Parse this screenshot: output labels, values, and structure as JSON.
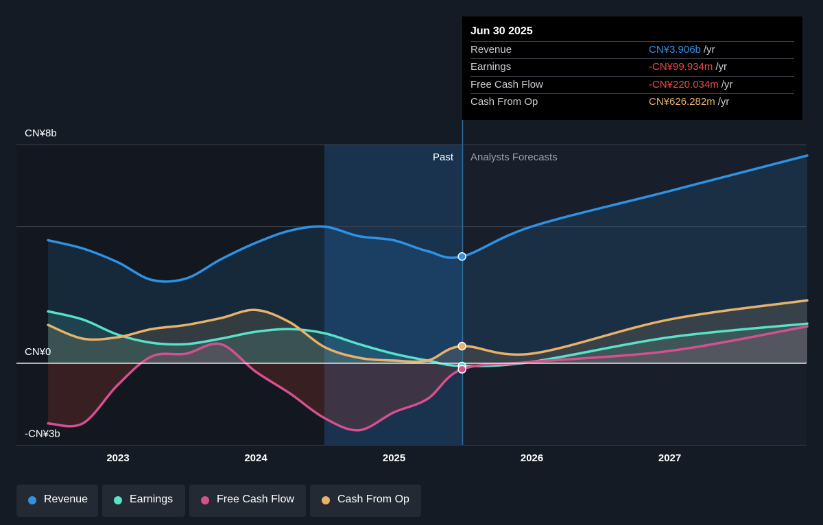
{
  "chart_data": {
    "type": "area",
    "y_axis_labels": [
      "CN¥8b",
      "CN¥0",
      "-CN¥3b"
    ],
    "ylim": [
      -3,
      8
    ],
    "x_tick_labels": [
      "2023",
      "2024",
      "2025",
      "2026",
      "2027"
    ],
    "regions": {
      "past": "Past",
      "forecast": "Analysts Forecasts"
    },
    "series": [
      {
        "name": "Revenue",
        "color": "#2e93e6",
        "points": [
          [
            "2022-06-30",
            4.5
          ],
          [
            "2022-09-30",
            4.2
          ],
          [
            "2022-12-31",
            3.7
          ],
          [
            "2023-03-31",
            3.05
          ],
          [
            "2023-06-30",
            3.1
          ],
          [
            "2023-09-30",
            3.8
          ],
          [
            "2023-12-31",
            4.4
          ],
          [
            "2024-03-31",
            4.85
          ],
          [
            "2024-06-30",
            5.0
          ],
          [
            "2024-09-30",
            4.65
          ],
          [
            "2024-12-31",
            4.5
          ],
          [
            "2025-03-31",
            4.1
          ],
          [
            "2025-06-30",
            3.906
          ],
          [
            "2025-12-31",
            5.0
          ],
          [
            "2026-12-31",
            6.3
          ],
          [
            "2027-12-31",
            7.6
          ]
        ]
      },
      {
        "name": "Earnings",
        "color": "#58e2c8",
        "points": [
          [
            "2022-06-30",
            1.9
          ],
          [
            "2022-09-30",
            1.6
          ],
          [
            "2022-12-31",
            1.05
          ],
          [
            "2023-03-31",
            0.75
          ],
          [
            "2023-06-30",
            0.7
          ],
          [
            "2023-09-30",
            0.9
          ],
          [
            "2023-12-31",
            1.15
          ],
          [
            "2024-03-31",
            1.25
          ],
          [
            "2024-06-30",
            1.1
          ],
          [
            "2024-09-30",
            0.7
          ],
          [
            "2024-12-31",
            0.35
          ],
          [
            "2025-03-31",
            0.1
          ],
          [
            "2025-06-30",
            -0.0999
          ],
          [
            "2025-12-31",
            0.05
          ],
          [
            "2026-12-31",
            0.95
          ],
          [
            "2027-12-31",
            1.45
          ]
        ]
      },
      {
        "name": "Free Cash Flow",
        "color": "#d6508f",
        "points": [
          [
            "2022-06-30",
            -2.2
          ],
          [
            "2022-09-30",
            -2.2
          ],
          [
            "2022-12-31",
            -0.8
          ],
          [
            "2023-03-31",
            0.25
          ],
          [
            "2023-06-30",
            0.35
          ],
          [
            "2023-09-30",
            0.7
          ],
          [
            "2023-12-31",
            -0.3
          ],
          [
            "2024-03-31",
            -1.1
          ],
          [
            "2024-06-30",
            -2.0
          ],
          [
            "2024-09-30",
            -2.45
          ],
          [
            "2024-12-31",
            -1.8
          ],
          [
            "2025-03-31",
            -1.3
          ],
          [
            "2025-06-30",
            -0.22
          ],
          [
            "2025-12-31",
            0.05
          ],
          [
            "2026-12-31",
            0.45
          ],
          [
            "2027-12-31",
            1.35
          ]
        ]
      },
      {
        "name": "Cash From Op",
        "color": "#e9b26a",
        "points": [
          [
            "2022-06-30",
            1.4
          ],
          [
            "2022-09-30",
            0.9
          ],
          [
            "2022-12-31",
            0.95
          ],
          [
            "2023-03-31",
            1.25
          ],
          [
            "2023-06-30",
            1.4
          ],
          [
            "2023-09-30",
            1.65
          ],
          [
            "2023-12-31",
            1.95
          ],
          [
            "2024-03-31",
            1.5
          ],
          [
            "2024-06-30",
            0.6
          ],
          [
            "2024-09-30",
            0.2
          ],
          [
            "2024-12-31",
            0.1
          ],
          [
            "2025-03-31",
            0.1
          ],
          [
            "2025-06-30",
            0.626
          ],
          [
            "2025-12-31",
            0.35
          ],
          [
            "2026-12-31",
            1.6
          ],
          [
            "2027-12-31",
            2.3
          ]
        ]
      }
    ]
  },
  "tooltip": {
    "date": "Jun 30 2025",
    "rows": [
      {
        "label": "Revenue",
        "value": "CN¥3.906b",
        "unit": "/yr",
        "color": "#2e93e6"
      },
      {
        "label": "Earnings",
        "value": "-CN¥99.934m",
        "unit": "/yr",
        "color": "#e84a4a"
      },
      {
        "label": "Free Cash Flow",
        "value": "-CN¥220.034m",
        "unit": "/yr",
        "color": "#e84a4a"
      },
      {
        "label": "Cash From Op",
        "value": "CN¥626.282m",
        "unit": "/yr",
        "color": "#e9b26a"
      }
    ]
  },
  "legend": [
    {
      "label": "Revenue",
      "color": "#2e93e6"
    },
    {
      "label": "Earnings",
      "color": "#58e2c8"
    },
    {
      "label": "Free Cash Flow",
      "color": "#d6508f"
    },
    {
      "label": "Cash From Op",
      "color": "#e9b26a"
    }
  ]
}
